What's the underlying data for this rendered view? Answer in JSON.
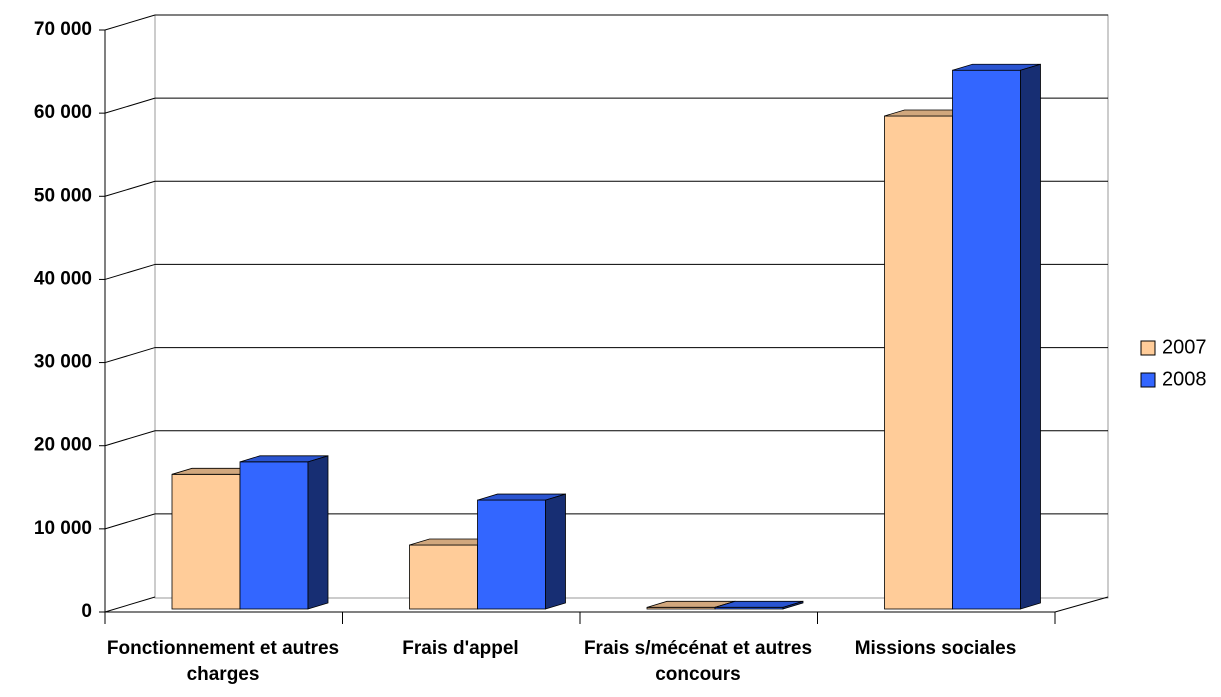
{
  "chart_data": {
    "type": "bar3d",
    "categories": [
      "Fonctionnement et autres charges",
      "Frais d'appel",
      "Frais s/mécénat et autres concours",
      "Missions sociales"
    ],
    "series": [
      {
        "name": "2007",
        "color": "#ffcc99",
        "values": [
          16200,
          7700,
          200,
          59300
        ]
      },
      {
        "name": "2008",
        "color": "#3366ff",
        "values": [
          17700,
          13100,
          200,
          64800
        ]
      }
    ],
    "ylim": [
      0,
      70000
    ],
    "yticks": [
      {
        "value": 0,
        "label": "0"
      },
      {
        "value": 10000,
        "label": "10 000"
      },
      {
        "value": 20000,
        "label": "20 000"
      },
      {
        "value": 30000,
        "label": "30 000"
      },
      {
        "value": 40000,
        "label": "40 000"
      },
      {
        "value": 50000,
        "label": "50 000"
      },
      {
        "value": 60000,
        "label": "60 000"
      },
      {
        "value": 70000,
        "label": "70 000"
      }
    ],
    "grid": true,
    "legend": "right"
  }
}
